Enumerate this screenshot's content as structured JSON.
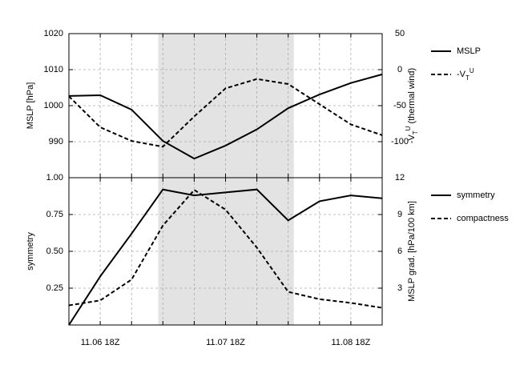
{
  "chart_data": [
    {
      "type": "line",
      "categories": [
        null,
        null,
        null,
        null,
        null,
        null,
        null,
        null,
        null,
        null,
        null
      ],
      "ylabel": "MSLP [hPa]",
      "y2label": {
        "main": "-V",
        "sub": "T",
        "sup": "U",
        "rest": " (thermal wind)"
      },
      "ylim": [
        980,
        1020
      ],
      "yticks": [
        990,
        1000,
        1010,
        1020
      ],
      "y2lim": [
        -150,
        50
      ],
      "y2ticks": [
        -100,
        -50,
        0,
        50
      ],
      "shade": [
        2.85,
        7.18
      ],
      "grid": true,
      "series": [
        {
          "name": "MSLP",
          "color": "#000000",
          "dash": false,
          "values": [
            1002.7,
            1002.9,
            998.9,
            990.2,
            985.3,
            988.9,
            993.4,
            999.3,
            1003.1,
            1006.3,
            1008.7
          ]
        },
        {
          "name": "-V",
          "name_sub": "T",
          "name_sup": "U",
          "color": "#000000",
          "dash": true,
          "axis": "y2",
          "values": [
            -37,
            -80,
            -99,
            -107,
            -65,
            -26,
            -13,
            -20,
            -48,
            -76,
            -91
          ]
        }
      ]
    },
    {
      "type": "line",
      "categories": [
        null,
        "11.06 18Z",
        null,
        null,
        null,
        "11.07 18Z",
        null,
        null,
        null,
        "11.08 18Z",
        null
      ],
      "ylabel": "symmetry",
      "y2label": {
        "main": "MSLP grad. [hPa/100 km]"
      },
      "ylim": [
        0,
        1
      ],
      "yticks": [
        {
          "value": 0.25,
          "label": "0.25"
        },
        {
          "value": 0.5,
          "label": "0.50"
        },
        {
          "value": 0.75,
          "label": "0.75"
        },
        {
          "value": 1,
          "label": "1.00"
        }
      ],
      "y2lim": [
        0,
        12
      ],
      "y2ticks": [
        3,
        6,
        9,
        12
      ],
      "shade": [
        2.85,
        7.18
      ],
      "grid": true,
      "series": [
        {
          "name": "symmetry",
          "color": "#000000",
          "dash": false,
          "values": [
            0.0,
            0.33,
            0.62,
            0.92,
            0.88,
            0.9,
            0.92,
            0.71,
            0.84,
            0.88,
            0.86
          ]
        },
        {
          "name": "compactness",
          "color": "#000000",
          "dash": true,
          "axis": "y2",
          "values": [
            1.6,
            2.0,
            3.7,
            8.1,
            11.0,
            9.4,
            6.3,
            2.7,
            2.1,
            1.8,
            1.4
          ]
        }
      ]
    }
  ]
}
